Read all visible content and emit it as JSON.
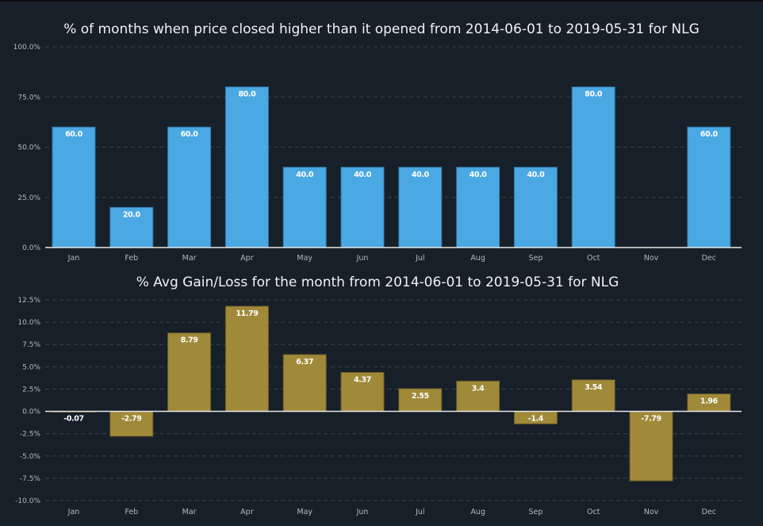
{
  "chart_data": [
    {
      "type": "bar",
      "title": "% of months when price closed higher than it opened from 2014-06-01 to 2019-05-31 for NLG",
      "xlabel": "",
      "ylabel": "",
      "categories": [
        "Jan",
        "Feb",
        "Mar",
        "Apr",
        "May",
        "Jun",
        "Jul",
        "Aug",
        "Sep",
        "Oct",
        "Nov",
        "Dec"
      ],
      "values": [
        60.0,
        20.0,
        60.0,
        80.0,
        40.0,
        40.0,
        40.0,
        40.0,
        40.0,
        80.0,
        0.0,
        60.0
      ],
      "data_labels": [
        "60.0",
        "20.0",
        "60.0",
        "80.0",
        "40.0",
        "40.0",
        "40.0",
        "40.0",
        "40.0",
        "80.0",
        "",
        "60.0"
      ],
      "ylim": [
        0,
        100
      ],
      "yticks": [
        0,
        25,
        50,
        75,
        100
      ],
      "ytick_labels": [
        "0.0%",
        "25.0%",
        "50.0%",
        "75.0%",
        "100.0%"
      ],
      "grid": true,
      "bar_color": "#4aa8e3",
      "legend": "none"
    },
    {
      "type": "bar",
      "title": "% Avg Gain/Loss for the month from 2014-06-01 to 2019-05-31 for NLG",
      "xlabel": "",
      "ylabel": "",
      "categories": [
        "Jan",
        "Feb",
        "Mar",
        "Apr",
        "May",
        "Jun",
        "Jul",
        "Aug",
        "Sep",
        "Oct",
        "Nov",
        "Dec"
      ],
      "values": [
        -0.07,
        -2.79,
        8.79,
        11.79,
        6.37,
        4.37,
        2.55,
        3.4,
        -1.4,
        3.54,
        -7.79,
        1.96
      ],
      "data_labels": [
        "-0.07",
        "-2.79",
        "8.79",
        "11.79",
        "6.37",
        "4.37",
        "2.55",
        "3.4",
        "-1.4",
        "3.54",
        "-7.79",
        "1.96"
      ],
      "ylim": [
        -10,
        12.5
      ],
      "yticks": [
        -10,
        -7.5,
        -5,
        -2.5,
        0,
        2.5,
        5,
        7.5,
        10,
        12.5
      ],
      "ytick_labels": [
        "-10.0%",
        "-7.5%",
        "-5.0%",
        "-2.5%",
        "0.0%",
        "2.5%",
        "5.0%",
        "7.5%",
        "10.0%",
        "12.5%"
      ],
      "grid": true,
      "bar_color": "#a08a3a",
      "legend": "none"
    }
  ]
}
